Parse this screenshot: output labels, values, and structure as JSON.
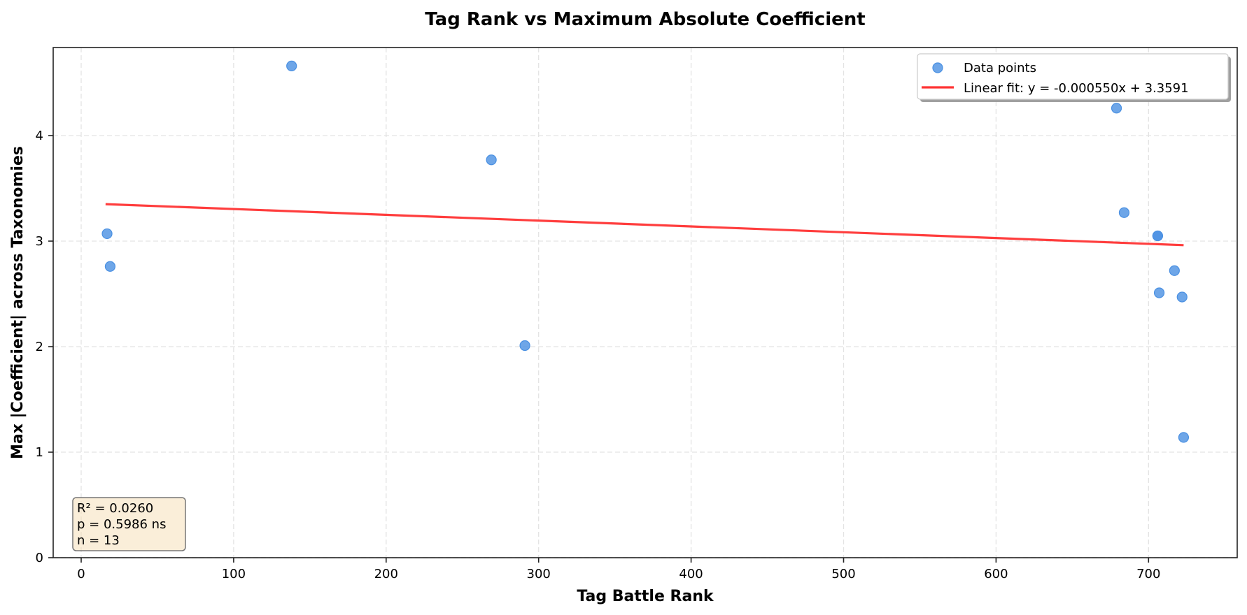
{
  "chart_data": {
    "type": "scatter",
    "title": "Tag Rank vs Maximum Absolute Coefficient",
    "xlabel": "Tag Battle Rank",
    "ylabel": "Max |Coefficient| across Taxonomies",
    "xlim": [
      -18,
      758
    ],
    "ylim": [
      0,
      4.83
    ],
    "x_ticks": [
      0,
      100,
      200,
      300,
      400,
      500,
      600,
      700
    ],
    "y_ticks": [
      0,
      1,
      2,
      3,
      4
    ],
    "grid": true,
    "legend_position": "upper right",
    "series": [
      {
        "name": "Data points",
        "kind": "scatter",
        "color": "#4a90e2",
        "points": [
          {
            "x": 17,
            "y": 3.07
          },
          {
            "x": 19,
            "y": 2.76
          },
          {
            "x": 138,
            "y": 4.66
          },
          {
            "x": 269,
            "y": 3.77
          },
          {
            "x": 291,
            "y": 2.01
          },
          {
            "x": 679,
            "y": 4.26
          },
          {
            "x": 684,
            "y": 3.27
          },
          {
            "x": 706,
            "y": 3.05
          },
          {
            "x": 717,
            "y": 2.72
          },
          {
            "x": 707,
            "y": 2.51
          },
          {
            "x": 722,
            "y": 2.47
          },
          {
            "x": 723,
            "y": 1.14
          },
          {
            "x": 706,
            "y": 3.05
          }
        ]
      },
      {
        "name": "Linear fit: y = -0.000550x + 3.3591",
        "kind": "line",
        "color": "#ff3333",
        "slope": -0.00055,
        "intercept": 3.3591,
        "x_range": [
          16,
          723
        ]
      }
    ],
    "annotations": {
      "stats_box": [
        "R² = 0.0260",
        "p = 0.5986 ns",
        "n = 13"
      ],
      "r_squared": 0.026,
      "p_value": 0.5986,
      "significance": "ns",
      "n": 13
    }
  },
  "legend": {
    "items": [
      {
        "label": "Data points",
        "marker": "circle"
      },
      {
        "label": "Linear fit: y = -0.000550x + 3.3591",
        "marker": "line"
      }
    ]
  },
  "stats_box": {
    "lines": [
      "R² = 0.0260",
      "p = 0.5986 ns",
      "n = 13"
    ],
    "background": "#f5deb3"
  }
}
